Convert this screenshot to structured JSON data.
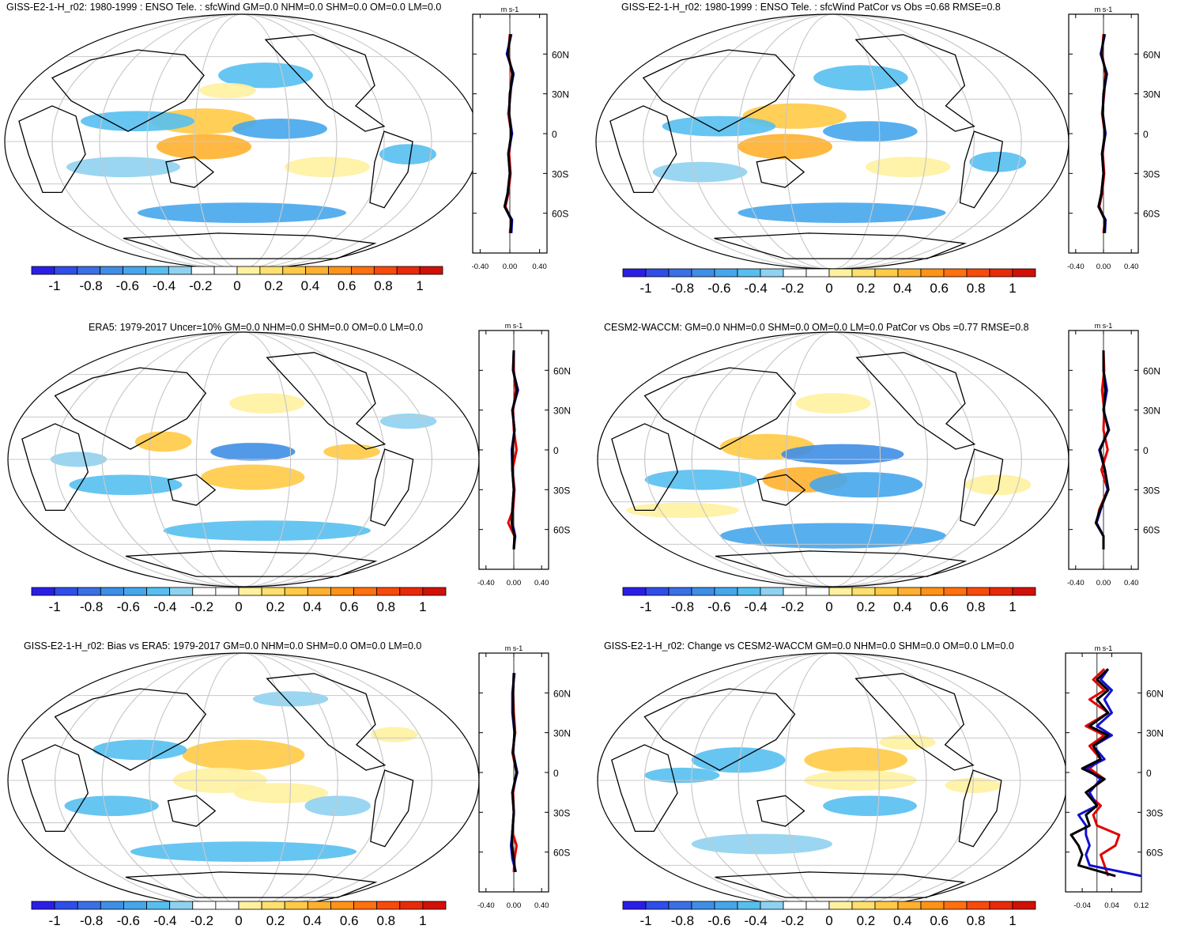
{
  "colorbar": {
    "colors": [
      "#2a1ee6",
      "#2f4ee9",
      "#3a6fe6",
      "#3f8ee6",
      "#46a6ec",
      "#56bff0",
      "#8fd1f0",
      "#ffffff",
      "#ffffff",
      "#fff1a0",
      "#ffe06e",
      "#ffca45",
      "#ffb02e",
      "#ff9318",
      "#ff700e",
      "#f84a0a",
      "#e82a08",
      "#d21005"
    ],
    "labels": [
      "-1",
      "-0.8",
      "-0.6",
      "-0.4",
      "-0.2",
      "0",
      "0.2",
      "0.4",
      "0.6",
      "0.8",
      "1"
    ]
  },
  "lat_labels": [
    "60N",
    "30N",
    "0",
    "30S",
    "60S"
  ],
  "units_label": "m s-1",
  "chart_data": [
    {
      "type": "heatmap",
      "title": "GISS-E2-1-H_r02: 1980-1999 : ENSO Tele. : sfcWind GM=0.0 NHM=0.0 SHM=0.0 OM=0.0 LM=0.0",
      "zonal": {
        "xticks": [
          "-0.40",
          "0.00",
          "0.40"
        ],
        "xlim": [
          -0.5,
          0.5
        ],
        "lat": [
          75,
          60,
          45,
          30,
          15,
          0,
          -15,
          -30,
          -45,
          -55,
          -65,
          -75
        ],
        "series": [
          {
            "color": "#e00000",
            "values": [
              0.0,
              -0.02,
              0.03,
              0.01,
              -0.02,
              0.02,
              -0.01,
              0.01,
              -0.02,
              -0.06,
              0.02,
              0.0
            ]
          },
          {
            "color": "#1010d0",
            "values": [
              0.02,
              -0.04,
              0.05,
              0.0,
              -0.01,
              0.03,
              -0.02,
              0.0,
              -0.03,
              -0.07,
              0.03,
              0.02
            ]
          },
          {
            "color": "#000000",
            "values": [
              0.01,
              -0.03,
              0.04,
              0.0,
              -0.01,
              0.02,
              -0.02,
              0.0,
              -0.03,
              -0.07,
              0.02,
              0.01
            ]
          }
        ]
      }
    },
    {
      "type": "heatmap",
      "title": "GISS-E2-1-H_r02: 1980-1999 : ENSO Tele. : sfcWind PatCor vs Obs =0.68 RMSE=0.8",
      "zonal": {
        "xticks": [
          "-0.40",
          "0.00",
          "0.40"
        ],
        "xlim": [
          -0.5,
          0.5
        ],
        "lat": [
          75,
          60,
          45,
          30,
          15,
          0,
          -15,
          -30,
          -45,
          -55,
          -65,
          -75
        ],
        "series": [
          {
            "color": "#e00000",
            "values": [
              0.0,
              -0.02,
              0.03,
              0.01,
              -0.02,
              0.02,
              -0.01,
              0.01,
              -0.02,
              -0.06,
              0.02,
              0.0
            ]
          },
          {
            "color": "#1010d0",
            "values": [
              0.02,
              -0.04,
              0.05,
              0.0,
              -0.01,
              0.03,
              -0.02,
              0.0,
              -0.03,
              -0.07,
              0.03,
              0.02
            ]
          },
          {
            "color": "#000000",
            "values": [
              0.01,
              -0.03,
              0.04,
              0.0,
              -0.01,
              0.02,
              -0.02,
              0.0,
              -0.03,
              -0.07,
              0.02,
              0.01
            ]
          }
        ]
      }
    },
    {
      "type": "heatmap",
      "title": "ERA5: 1979-2017 Uncer=10% GM=0.0 NHM=0.0 SHM=0.0 OM=0.0 LM=0.0",
      "zonal": {
        "xticks": [
          "-0.40",
          "0.00",
          "0.40"
        ],
        "xlim": [
          -0.5,
          0.5
        ],
        "lat": [
          75,
          60,
          45,
          30,
          15,
          0,
          -15,
          -30,
          -45,
          -55,
          -65,
          -75
        ],
        "series": [
          {
            "color": "#e00000",
            "values": [
              0.0,
              0.0,
              0.03,
              -0.01,
              0.0,
              0.04,
              -0.02,
              0.01,
              -0.01,
              -0.08,
              0.01,
              0.0
            ]
          },
          {
            "color": "#1010d0",
            "values": [
              0.0,
              -0.01,
              0.06,
              -0.02,
              0.01,
              -0.03,
              -0.02,
              0.0,
              -0.02,
              -0.02,
              0.02,
              0.0
            ]
          },
          {
            "color": "#000000",
            "values": [
              0.0,
              -0.01,
              0.05,
              -0.02,
              0.01,
              -0.02,
              -0.02,
              0.0,
              -0.02,
              -0.03,
              0.01,
              0.0
            ]
          }
        ]
      }
    },
    {
      "type": "heatmap",
      "title": "CESM2-WACCM: GM=0.0 NHM=0.0 SHM=0.0 OM=0.0 LM=0.0 PatCor vs Obs =0.77 RMSE=0.8",
      "zonal": {
        "xticks": [
          "-0.40",
          "0.00",
          "0.40"
        ],
        "xlim": [
          -0.5,
          0.5
        ],
        "lat": [
          75,
          60,
          45,
          30,
          15,
          0,
          -15,
          -30,
          -45,
          -55,
          -65,
          -75
        ],
        "series": [
          {
            "color": "#e00000",
            "values": [
              0.0,
              0.01,
              -0.02,
              0.01,
              0.0,
              0.06,
              -0.03,
              0.06,
              -0.06,
              -0.1,
              0.0,
              0.0
            ]
          },
          {
            "color": "#1010d0",
            "values": [
              0.0,
              0.0,
              0.05,
              0.0,
              0.08,
              -0.06,
              0.02,
              0.06,
              -0.04,
              -0.1,
              0.0,
              0.0
            ]
          },
          {
            "color": "#000000",
            "values": [
              0.0,
              0.0,
              0.03,
              0.0,
              0.07,
              -0.05,
              0.02,
              0.07,
              -0.05,
              -0.11,
              0.0,
              0.0
            ]
          }
        ]
      }
    },
    {
      "type": "heatmap",
      "title": "GISS-E2-1-H_r02: Bias vs ERA5: 1979-2017 GM=0.0 NHM=0.0 SHM=0.0 OM=0.0 LM=0.0",
      "zonal": {
        "xticks": [
          "-0.40",
          "0.00",
          "0.40"
        ],
        "xlim": [
          -0.5,
          0.5
        ],
        "lat": [
          75,
          60,
          45,
          30,
          15,
          0,
          -15,
          -30,
          -45,
          -55,
          -65,
          -75
        ],
        "series": [
          {
            "color": "#e00000",
            "values": [
              0.0,
              -0.01,
              0.0,
              0.02,
              -0.02,
              0.04,
              -0.01,
              0.0,
              -0.02,
              0.04,
              0.01,
              0.0
            ]
          },
          {
            "color": "#1010d0",
            "values": [
              0.01,
              -0.02,
              -0.02,
              0.01,
              -0.01,
              0.05,
              -0.02,
              0.0,
              -0.02,
              -0.04,
              -0.02,
              0.03
            ]
          },
          {
            "color": "#000000",
            "values": [
              0.0,
              -0.01,
              -0.01,
              0.01,
              -0.01,
              0.04,
              -0.02,
              0.0,
              -0.02,
              -0.03,
              0.0,
              0.02
            ]
          }
        ]
      }
    },
    {
      "type": "heatmap",
      "title": "GISS-E2-1-H_r02: Change vs CESM2-WACCM GM=0.0 NHM=0.0 SHM=0.0 OM=0.0 LM=0.0",
      "zonal": {
        "xticks": [
          "-0.04",
          "0.04",
          "0.12"
        ],
        "xlim": [
          -0.085,
          0.12
        ],
        "lat": [
          78,
          70,
          62,
          55,
          45,
          35,
          28,
          20,
          10,
          3,
          -5,
          -15,
          -25,
          -32,
          -40,
          -47,
          -55,
          -62,
          -70,
          -78
        ],
        "series": [
          {
            "color": "#e00000",
            "values": [
              0.02,
              -0.01,
              0.02,
              -0.02,
              0.03,
              -0.03,
              0.02,
              -0.02,
              0.01,
              -0.02,
              0.02,
              -0.03,
              0.01,
              -0.01,
              0.0,
              0.06,
              0.05,
              0.01,
              0.02,
              0.03
            ]
          },
          {
            "color": "#1010d0",
            "values": [
              0.03,
              0.01,
              0.04,
              0.02,
              0.04,
              0.0,
              0.04,
              -0.01,
              0.02,
              -0.03,
              0.01,
              -0.02,
              0.0,
              -0.05,
              -0.03,
              -0.03,
              -0.02,
              -0.03,
              -0.02,
              0.12
            ]
          },
          {
            "color": "#000000",
            "values": [
              0.03,
              0.0,
              0.03,
              0.0,
              0.03,
              -0.02,
              0.03,
              -0.01,
              0.01,
              -0.04,
              0.02,
              -0.03,
              0.0,
              -0.03,
              -0.02,
              -0.07,
              -0.05,
              -0.04,
              -0.05,
              0.05
            ]
          }
        ]
      }
    }
  ]
}
